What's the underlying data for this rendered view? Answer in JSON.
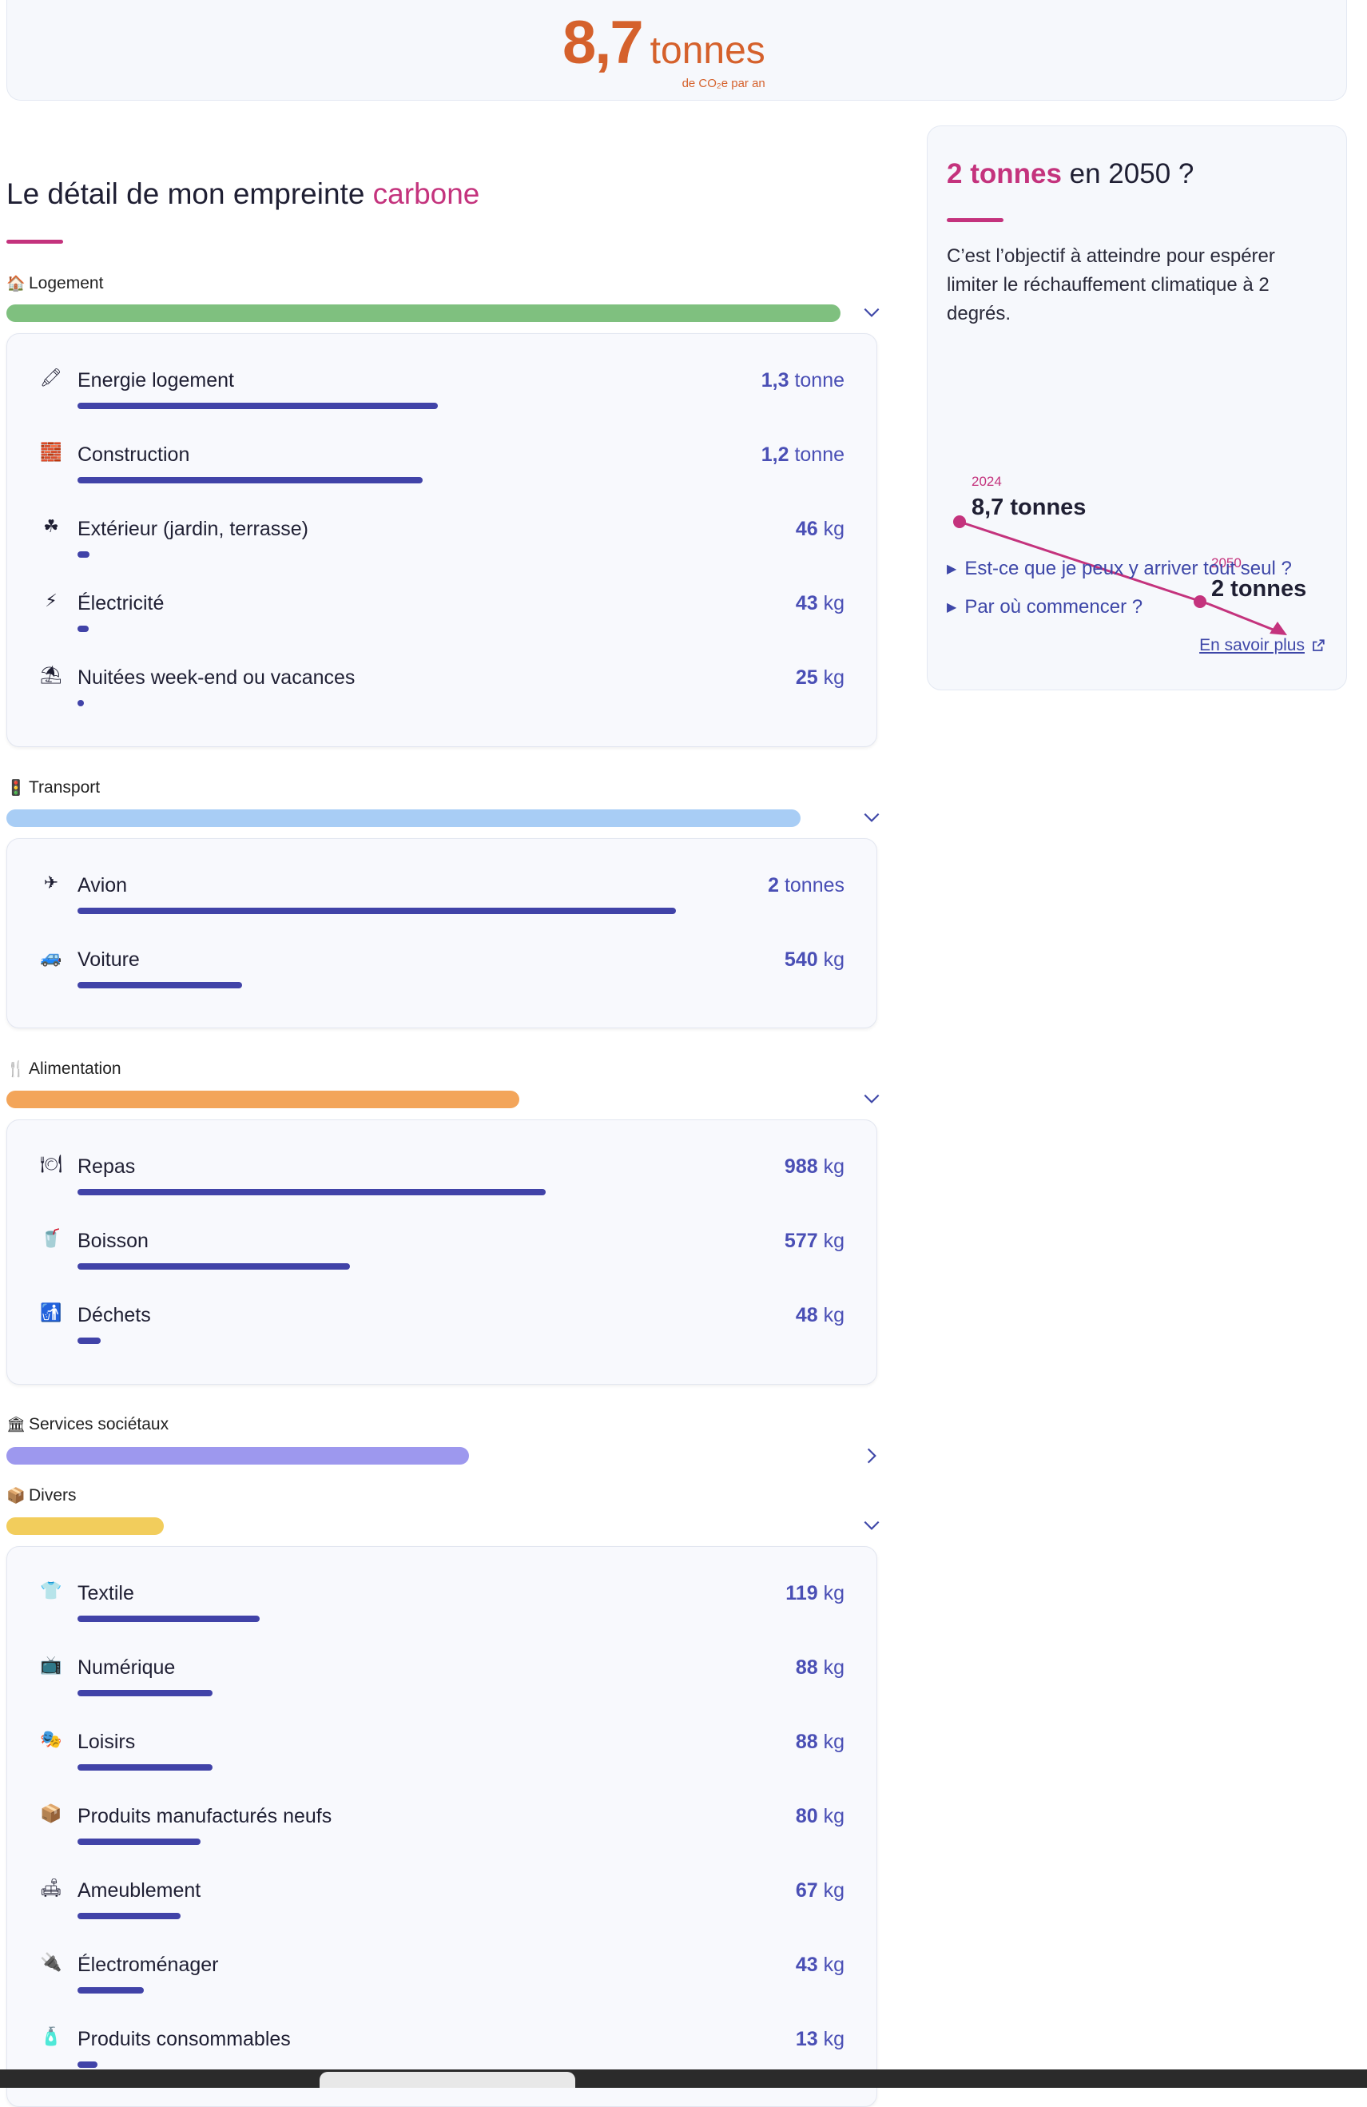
{
  "total": {
    "value": "8,7",
    "unit": "tonnes",
    "sub": "de CO₂e par an"
  },
  "title": {
    "prefix": "Le détail de mon empreinte",
    "accent": "carbone"
  },
  "colors": {
    "accent": "#c4337d",
    "orange": "#d5612c",
    "bar": "#4143a8"
  },
  "categories": {
    "logement": {
      "label": "Logement",
      "icon": "house-icon",
      "color": "#7fc07f",
      "share": 0.97,
      "items": [
        {
          "name": "Energie logement",
          "num": "1,3",
          "unit": "tonne",
          "share": 0.47,
          "icon": "match-icon"
        },
        {
          "name": "Construction",
          "num": "1,2",
          "unit": "tonne",
          "share": 0.45,
          "icon": "brick-icon"
        },
        {
          "name": "Extérieur (jardin, terrasse)",
          "num": "46",
          "unit": "kg",
          "share": 0.016,
          "icon": "shamrock-icon"
        },
        {
          "name": "Électricité",
          "num": "43",
          "unit": "kg",
          "share": 0.015,
          "icon": "lightning-icon"
        },
        {
          "name": "Nuitées week-end ou vacances",
          "num": "25",
          "unit": "kg",
          "share": 0.008,
          "icon": "beach-umbrella-icon"
        }
      ]
    },
    "transport": {
      "label": "Transport",
      "icon": "traffic-light-icon",
      "color": "#a8cdf5",
      "share": 0.924,
      "items": [
        {
          "name": "Avion",
          "num": "2",
          "unit": "tonnes",
          "share": 0.78,
          "icon": "airplane-icon"
        },
        {
          "name": "Voiture",
          "num": "540",
          "unit": "kg",
          "share": 0.215,
          "icon": "car-icon"
        }
      ]
    },
    "alimentation": {
      "label": "Alimentation",
      "icon": "fork-knife-icon",
      "color": "#f3a55a",
      "share": 0.597,
      "items": [
        {
          "name": "Repas",
          "num": "988",
          "unit": "kg",
          "share": 0.61,
          "icon": "cutlery-icon"
        },
        {
          "name": "Boisson",
          "num": "577",
          "unit": "kg",
          "share": 0.355,
          "icon": "cup-icon"
        },
        {
          "name": "Déchets",
          "num": "48",
          "unit": "kg",
          "share": 0.03,
          "icon": "trash-icon"
        }
      ]
    },
    "services": {
      "label": "Services sociétaux",
      "icon": "bank-icon",
      "color": "#9d98ee",
      "share": 0.538
    },
    "divers": {
      "label": "Divers",
      "icon": "package-icon",
      "color": "#f2cd5c",
      "share": 0.183,
      "items": [
        {
          "name": "Textile",
          "num": "119",
          "unit": "kg",
          "share": 0.238,
          "icon": "tshirt-icon"
        },
        {
          "name": "Numérique",
          "num": "88",
          "unit": "kg",
          "share": 0.176,
          "icon": "tv-icon"
        },
        {
          "name": "Loisirs",
          "num": "88",
          "unit": "kg",
          "share": 0.176,
          "icon": "masks-icon"
        },
        {
          "name": "Produits manufacturés neufs",
          "num": "80",
          "unit": "kg",
          "share": 0.16,
          "icon": "box-icon"
        },
        {
          "name": "Ameublement",
          "num": "67",
          "unit": "kg",
          "share": 0.134,
          "icon": "sofa-icon"
        },
        {
          "name": "Électroménager",
          "num": "43",
          "unit": "kg",
          "share": 0.086,
          "icon": "plug-icon"
        },
        {
          "name": "Produits consommables",
          "num": "13",
          "unit": "kg",
          "share": 0.026,
          "icon": "bottle-icon"
        }
      ]
    }
  },
  "objective": {
    "title_accent": "2 tonnes",
    "title_rest": "en 2050 ?",
    "text": "C’est l’objectif à atteindre pour espérer limiter le réchauffement climatique à 2 degrés.",
    "start_year": "2024",
    "start_value": "8,7 tonnes",
    "end_year": "2050",
    "end_value": "2 tonnes",
    "links": [
      "Est-ce que je peux y arriver tout seul ?",
      "Par où commencer ?"
    ],
    "more": "En savoir plus"
  }
}
